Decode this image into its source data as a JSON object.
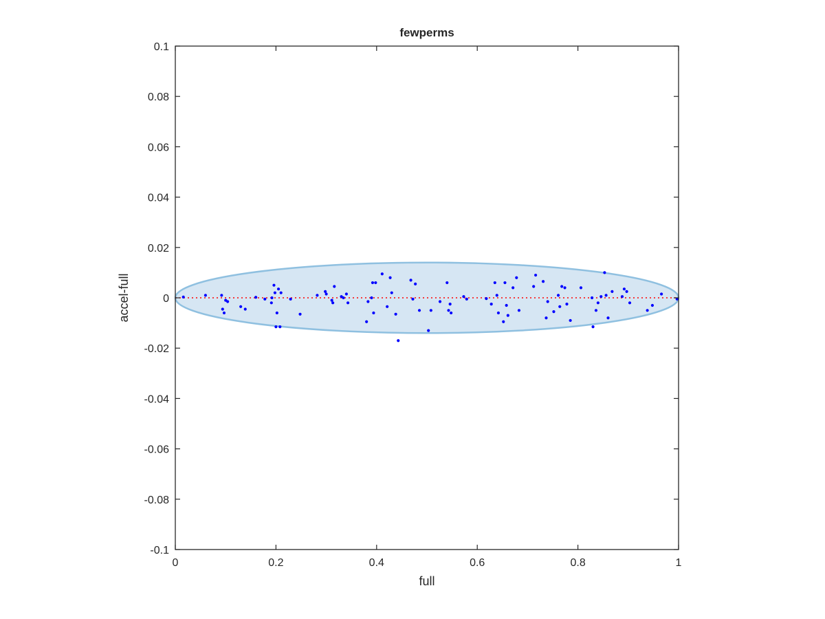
{
  "chart_data": {
    "type": "scatter",
    "title": "fewperms",
    "xlabel": "full",
    "ylabel": "accel-full",
    "xlim": [
      0,
      1
    ],
    "ylim": [
      -0.1,
      0.1
    ],
    "xticks": [
      0,
      0.2,
      0.4,
      0.6,
      0.8,
      1
    ],
    "xtick_labels": [
      "0",
      "0.2",
      "0.4",
      "0.6",
      "0.8",
      "1"
    ],
    "yticks": [
      -0.1,
      -0.08,
      -0.06,
      -0.04,
      -0.02,
      0,
      0.02,
      0.04,
      0.06,
      0.08,
      0.1
    ],
    "ytick_labels": [
      "-0.1",
      "-0.08",
      "-0.06",
      "-0.04",
      "-0.02",
      "0",
      "0.02",
      "0.04",
      "0.06",
      "0.08",
      "0.1"
    ],
    "grid": false,
    "colors": {
      "points": "#0000ff",
      "reference_line": "#ff0000",
      "ellipse_fill": "#d6e6f3",
      "ellipse_stroke": "#8fc0e0",
      "axes": "#262626"
    },
    "reference_line": {
      "y": 0,
      "style": "dotted"
    },
    "ellipse": {
      "cx": 0.5,
      "cy": 0,
      "rx": 0.5,
      "ry": 0.014
    },
    "points": [
      {
        "x": 0.016,
        "y": 0.0003
      },
      {
        "x": 0.06,
        "y": 0.001
      },
      {
        "x": 0.092,
        "y": 0.001
      },
      {
        "x": 0.094,
        "y": -0.0045
      },
      {
        "x": 0.097,
        "y": -0.006
      },
      {
        "x": 0.1,
        "y": -0.001
      },
      {
        "x": 0.104,
        "y": -0.0015
      },
      {
        "x": 0.13,
        "y": -0.0035
      },
      {
        "x": 0.139,
        "y": -0.0045
      },
      {
        "x": 0.16,
        "y": 0.0002
      },
      {
        "x": 0.178,
        "y": -0.0005
      },
      {
        "x": 0.191,
        "y": -0.002
      },
      {
        "x": 0.192,
        "y": 0.0
      },
      {
        "x": 0.196,
        "y": 0.005
      },
      {
        "x": 0.198,
        "y": 0.002
      },
      {
        "x": 0.2,
        "y": -0.0115
      },
      {
        "x": 0.202,
        "y": -0.006
      },
      {
        "x": 0.205,
        "y": 0.0035
      },
      {
        "x": 0.208,
        "y": -0.0115
      },
      {
        "x": 0.21,
        "y": 0.002
      },
      {
        "x": 0.229,
        "y": -0.0005
      },
      {
        "x": 0.248,
        "y": -0.0065
      },
      {
        "x": 0.282,
        "y": 0.001
      },
      {
        "x": 0.298,
        "y": 0.0025
      },
      {
        "x": 0.3,
        "y": 0.0015
      },
      {
        "x": 0.311,
        "y": -0.001
      },
      {
        "x": 0.313,
        "y": -0.002
      },
      {
        "x": 0.316,
        "y": 0.0045
      },
      {
        "x": 0.33,
        "y": 0.0005
      },
      {
        "x": 0.334,
        "y": 0.0
      },
      {
        "x": 0.34,
        "y": 0.0015
      },
      {
        "x": 0.343,
        "y": -0.002
      },
      {
        "x": 0.38,
        "y": -0.0095
      },
      {
        "x": 0.383,
        "y": -0.0015
      },
      {
        "x": 0.39,
        "y": 0.0
      },
      {
        "x": 0.392,
        "y": 0.006
      },
      {
        "x": 0.394,
        "y": -0.006
      },
      {
        "x": 0.398,
        "y": 0.006
      },
      {
        "x": 0.411,
        "y": 0.0095
      },
      {
        "x": 0.421,
        "y": -0.0035
      },
      {
        "x": 0.427,
        "y": 0.008
      },
      {
        "x": 0.43,
        "y": 0.002
      },
      {
        "x": 0.438,
        "y": -0.0065
      },
      {
        "x": 0.443,
        "y": -0.017
      },
      {
        "x": 0.468,
        "y": 0.007
      },
      {
        "x": 0.472,
        "y": -0.0005
      },
      {
        "x": 0.477,
        "y": 0.0055
      },
      {
        "x": 0.485,
        "y": -0.005
      },
      {
        "x": 0.503,
        "y": -0.013
      },
      {
        "x": 0.508,
        "y": -0.005
      },
      {
        "x": 0.526,
        "y": -0.0015
      },
      {
        "x": 0.54,
        "y": 0.006
      },
      {
        "x": 0.543,
        "y": -0.005
      },
      {
        "x": 0.546,
        "y": -0.0025
      },
      {
        "x": 0.548,
        "y": -0.006
      },
      {
        "x": 0.573,
        "y": 0.0005
      },
      {
        "x": 0.579,
        "y": -0.0005
      },
      {
        "x": 0.618,
        "y": -0.0003
      },
      {
        "x": 0.628,
        "y": -0.0025
      },
      {
        "x": 0.635,
        "y": 0.006
      },
      {
        "x": 0.639,
        "y": 0.001
      },
      {
        "x": 0.642,
        "y": -0.006
      },
      {
        "x": 0.652,
        "y": -0.0095
      },
      {
        "x": 0.655,
        "y": 0.006
      },
      {
        "x": 0.658,
        "y": -0.003
      },
      {
        "x": 0.661,
        "y": -0.007
      },
      {
        "x": 0.671,
        "y": 0.004
      },
      {
        "x": 0.678,
        "y": 0.008
      },
      {
        "x": 0.683,
        "y": -0.005
      },
      {
        "x": 0.712,
        "y": 0.0045
      },
      {
        "x": 0.716,
        "y": 0.009
      },
      {
        "x": 0.731,
        "y": 0.0065
      },
      {
        "x": 0.737,
        "y": -0.008
      },
      {
        "x": 0.74,
        "y": -0.0015
      },
      {
        "x": 0.752,
        "y": -0.0055
      },
      {
        "x": 0.761,
        "y": 0.001
      },
      {
        "x": 0.764,
        "y": -0.0035
      },
      {
        "x": 0.768,
        "y": 0.0045
      },
      {
        "x": 0.774,
        "y": 0.004
      },
      {
        "x": 0.778,
        "y": -0.0025
      },
      {
        "x": 0.785,
        "y": -0.009
      },
      {
        "x": 0.806,
        "y": 0.004
      },
      {
        "x": 0.828,
        "y": 0.0
      },
      {
        "x": 0.83,
        "y": -0.0115
      },
      {
        "x": 0.836,
        "y": -0.005
      },
      {
        "x": 0.84,
        "y": -0.002
      },
      {
        "x": 0.846,
        "y": 0.0005
      },
      {
        "x": 0.853,
        "y": 0.01
      },
      {
        "x": 0.856,
        "y": 0.001
      },
      {
        "x": 0.86,
        "y": -0.008
      },
      {
        "x": 0.868,
        "y": 0.0025
      },
      {
        "x": 0.888,
        "y": 0.0005
      },
      {
        "x": 0.892,
        "y": 0.0035
      },
      {
        "x": 0.897,
        "y": 0.0025
      },
      {
        "x": 0.903,
        "y": -0.002
      },
      {
        "x": 0.938,
        "y": -0.005
      },
      {
        "x": 0.948,
        "y": -0.003
      },
      {
        "x": 0.966,
        "y": 0.0015
      },
      {
        "x": 0.997,
        "y": -0.0005
      }
    ]
  }
}
